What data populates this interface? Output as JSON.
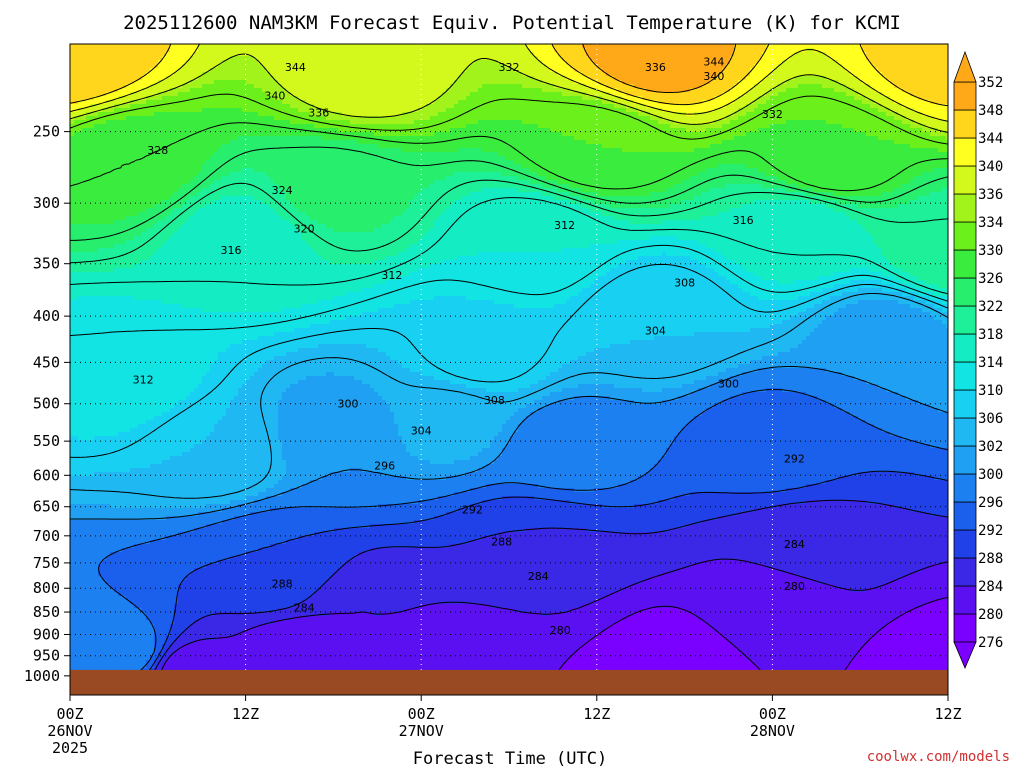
{
  "chart_data": {
    "type": "heatmap",
    "title": "2025112600 NAM3KM Forecast Equiv. Potential Temperature (K) for KCMI",
    "xlabel": "Forecast Time (UTC)",
    "credit": "coolwx.com/models",
    "x_ticks": [
      {
        "hours": 0,
        "lines": [
          "00Z",
          "26NOV",
          "2025"
        ]
      },
      {
        "hours": 12,
        "lines": [
          "12Z"
        ]
      },
      {
        "hours": 24,
        "lines": [
          "00Z",
          "27NOV"
        ]
      },
      {
        "hours": 36,
        "lines": [
          "12Z"
        ]
      },
      {
        "hours": 48,
        "lines": [
          "00Z",
          "28NOV"
        ]
      },
      {
        "hours": 60,
        "lines": [
          "12Z"
        ]
      }
    ],
    "xlim": [
      0,
      60
    ],
    "y_axis": {
      "scale": "log-pressure",
      "ylim": [
        1050,
        200
      ],
      "inverted": true
    },
    "y_ticks": [
      250,
      300,
      350,
      400,
      450,
      500,
      550,
      600,
      650,
      700,
      750,
      800,
      850,
      900,
      950,
      1000
    ],
    "ground_pressure": 985,
    "colorbar": {
      "levels": [
        276,
        280,
        284,
        288,
        292,
        296,
        300,
        302,
        306,
        310,
        314,
        318,
        322,
        326,
        330,
        334,
        336,
        340,
        344,
        348,
        352
      ],
      "colors": [
        "#7a00ff",
        "#5a10f0",
        "#3a28e6",
        "#2040e8",
        "#1a60ec",
        "#1c80f0",
        "#20a0f2",
        "#1fb8f2",
        "#18d0f2",
        "#12e4e4",
        "#14ecc4",
        "#1ef09a",
        "#28ee6e",
        "#3aec3e",
        "#6cf01c",
        "#a2f21c",
        "#d2f81c",
        "#ffff20",
        "#ffd61c",
        "#ffa818"
      ]
    },
    "grid": true,
    "series": [
      {
        "values": [
          {
            "x": 0,
            "p": 985,
            "theta": 300
          },
          {
            "x": 4,
            "p": 940,
            "theta": 298
          },
          {
            "x": 8,
            "p": 985,
            "theta": 282
          },
          {
            "x": 16,
            "p": 960,
            "theta": 280
          },
          {
            "x": 28,
            "p": 985,
            "theta": 280
          },
          {
            "x": 40,
            "p": 975,
            "theta": 276
          },
          {
            "x": 60,
            "p": 985,
            "theta": 278
          },
          {
            "x": 20,
            "p": 850,
            "theta": 284
          },
          {
            "x": 33,
            "p": 800,
            "theta": 284
          },
          {
            "x": 48,
            "p": 820,
            "theta": 282
          },
          {
            "x": 14,
            "p": 760,
            "theta": 292
          },
          {
            "x": 32,
            "p": 720,
            "theta": 288
          },
          {
            "x": 50,
            "p": 720,
            "theta": 286
          },
          {
            "x": 10,
            "p": 560,
            "theta": 306
          },
          {
            "x": 18,
            "p": 540,
            "theta": 300
          },
          {
            "x": 26,
            "p": 520,
            "theta": 303
          },
          {
            "x": 34,
            "p": 560,
            "theta": 298
          },
          {
            "x": 48,
            "p": 560,
            "theta": 294
          },
          {
            "x": 4,
            "p": 470,
            "theta": 312
          },
          {
            "x": 28,
            "p": 440,
            "theta": 309
          },
          {
            "x": 40,
            "p": 400,
            "theta": 306
          },
          {
            "x": 56,
            "p": 420,
            "theta": 300
          },
          {
            "x": 12,
            "p": 330,
            "theta": 316
          },
          {
            "x": 32,
            "p": 330,
            "theta": 314
          },
          {
            "x": 50,
            "p": 320,
            "theta": 316
          },
          {
            "x": 60,
            "p": 340,
            "theta": 320
          },
          {
            "x": 4,
            "p": 270,
            "theta": 328
          },
          {
            "x": 18,
            "p": 290,
            "theta": 323
          },
          {
            "x": 36,
            "p": 260,
            "theta": 330
          },
          {
            "x": 52,
            "p": 270,
            "theta": 330
          },
          {
            "x": 0,
            "p": 205,
            "theta": 348
          },
          {
            "x": 20,
            "p": 215,
            "theta": 338
          },
          {
            "x": 40,
            "p": 205,
            "theta": 350
          },
          {
            "x": 60,
            "p": 205,
            "theta": 346
          }
        ]
      }
    ],
    "contour_labels": [
      {
        "x": 15.4,
        "p": 212,
        "text": "344"
      },
      {
        "x": 44.0,
        "p": 209,
        "text": "344"
      },
      {
        "x": 44.0,
        "p": 217,
        "text": "340"
      },
      {
        "x": 14.0,
        "p": 228,
        "text": "340"
      },
      {
        "x": 30.0,
        "p": 212,
        "text": "332"
      },
      {
        "x": 40.0,
        "p": 212,
        "text": "336"
      },
      {
        "x": 17.0,
        "p": 238,
        "text": "336"
      },
      {
        "x": 48.0,
        "p": 239,
        "text": "332"
      },
      {
        "x": 6.0,
        "p": 262,
        "text": "328"
      },
      {
        "x": 14.5,
        "p": 290,
        "text": "324"
      },
      {
        "x": 16.0,
        "p": 320,
        "text": "320"
      },
      {
        "x": 33.8,
        "p": 317,
        "text": "312"
      },
      {
        "x": 46.0,
        "p": 313,
        "text": "316"
      },
      {
        "x": 11.0,
        "p": 338,
        "text": "316"
      },
      {
        "x": 22.0,
        "p": 360,
        "text": "312"
      },
      {
        "x": 42.0,
        "p": 367,
        "text": "308"
      },
      {
        "x": 40.0,
        "p": 415,
        "text": "304"
      },
      {
        "x": 5.0,
        "p": 470,
        "text": "312"
      },
      {
        "x": 29.0,
        "p": 495,
        "text": "308"
      },
      {
        "x": 45.0,
        "p": 475,
        "text": "300"
      },
      {
        "x": 19.0,
        "p": 500,
        "text": "300"
      },
      {
        "x": 24.0,
        "p": 535,
        "text": "304"
      },
      {
        "x": 21.5,
        "p": 585,
        "text": "296"
      },
      {
        "x": 49.5,
        "p": 575,
        "text": "292"
      },
      {
        "x": 27.5,
        "p": 655,
        "text": "292"
      },
      {
        "x": 29.5,
        "p": 710,
        "text": "288"
      },
      {
        "x": 49.5,
        "p": 715,
        "text": "284"
      },
      {
        "x": 32.0,
        "p": 775,
        "text": "284"
      },
      {
        "x": 14.5,
        "p": 790,
        "text": "288"
      },
      {
        "x": 16.0,
        "p": 840,
        "text": "284"
      },
      {
        "x": 49.5,
        "p": 795,
        "text": "280"
      },
      {
        "x": 33.5,
        "p": 890,
        "text": "280"
      }
    ]
  }
}
